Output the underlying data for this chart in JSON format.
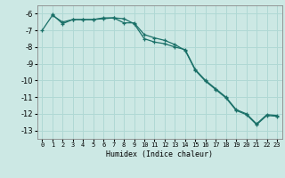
{
  "xlabel": "Humidex (Indice chaleur)",
  "background_color": "#cce8e4",
  "grid_color": "#b0d8d4",
  "line_color": "#1a7068",
  "xlim": [
    -0.5,
    23.5
  ],
  "ylim": [
    -13.5,
    -5.5
  ],
  "yticks": [
    -6,
    -7,
    -8,
    -9,
    -10,
    -11,
    -12,
    -13
  ],
  "xticks": [
    0,
    1,
    2,
    3,
    4,
    5,
    6,
    7,
    8,
    9,
    10,
    11,
    12,
    13,
    14,
    15,
    16,
    17,
    18,
    19,
    20,
    21,
    22,
    23
  ],
  "series1_x": [
    0,
    1,
    2,
    3,
    4,
    5,
    6,
    7,
    8,
    9,
    10,
    11,
    12,
    13,
    14,
    15,
    16,
    17,
    18,
    19,
    20,
    21,
    22,
    23
  ],
  "series1_y": [
    -7.0,
    -6.1,
    -6.5,
    -6.35,
    -6.35,
    -6.35,
    -6.25,
    -6.25,
    -6.55,
    -6.55,
    -7.25,
    -7.45,
    -7.6,
    -7.85,
    -8.2,
    -9.4,
    -10.05,
    -10.55,
    -11.05,
    -11.8,
    -12.05,
    -12.65,
    -12.1,
    -12.15
  ],
  "series2_x": [
    1,
    2,
    3,
    4,
    5,
    6,
    7,
    8,
    9,
    10,
    11,
    12,
    13,
    14,
    15,
    16,
    17,
    18,
    19,
    20,
    21,
    22,
    23
  ],
  "series2_y": [
    -6.05,
    -6.6,
    -6.35,
    -6.35,
    -6.35,
    -6.3,
    -6.25,
    -6.3,
    -6.6,
    -7.5,
    -7.7,
    -7.8,
    -8.0,
    -8.15,
    -9.35,
    -10.0,
    -10.5,
    -11.0,
    -11.75,
    -12.0,
    -12.6,
    -12.05,
    -12.1
  ]
}
